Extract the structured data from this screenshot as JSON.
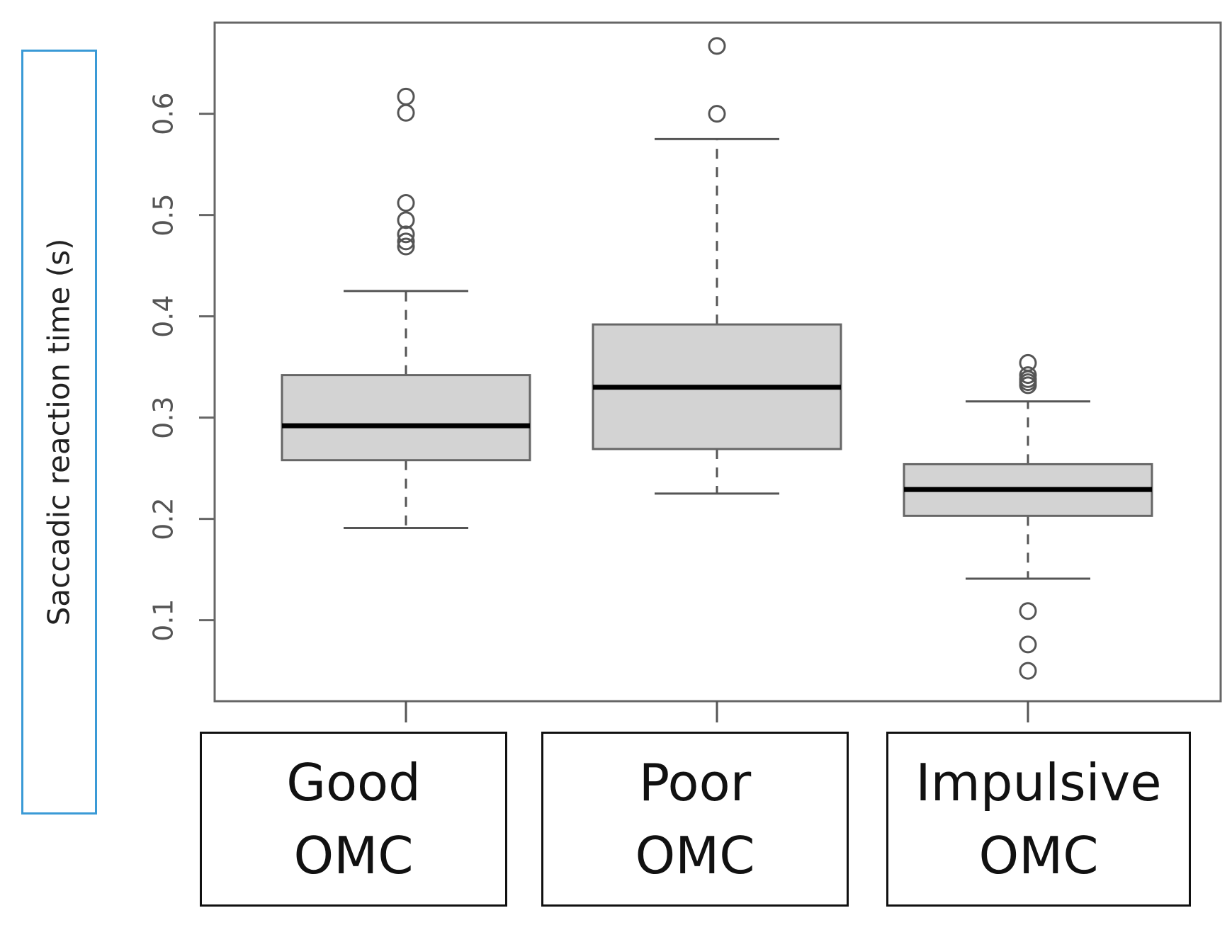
{
  "chart_data": {
    "type": "boxplot",
    "title": "",
    "xlabel": "",
    "ylabel": "Saccadic reaction time (s)",
    "ylim": [
      0.02,
      0.69
    ],
    "yticks": [
      0.1,
      0.2,
      0.3,
      0.4,
      0.5,
      0.6
    ],
    "ytick_labels": [
      "0.1",
      "0.2",
      "0.3",
      "0.4",
      "0.5",
      "0.6"
    ],
    "grid": false,
    "box_fill": "#d3d3d3",
    "categories": [
      {
        "name": "Good",
        "sub": "OMC"
      },
      {
        "name": "Poor",
        "sub": "OMC"
      },
      {
        "name": "Impulsive",
        "sub": "OMC"
      }
    ],
    "boxes": [
      {
        "label": "Good OMC",
        "whisker_low": 0.191,
        "q1": 0.258,
        "median": 0.292,
        "q3": 0.342,
        "whisker_high": 0.425,
        "outliers": [
          0.617,
          0.601,
          0.512,
          0.495,
          0.481,
          0.474,
          0.469
        ]
      },
      {
        "label": "Poor OMC",
        "whisker_low": 0.225,
        "q1": 0.269,
        "median": 0.33,
        "q3": 0.392,
        "whisker_high": 0.575,
        "outliers": [
          0.667,
          0.6
        ]
      },
      {
        "label": "Impulsive OMC",
        "whisker_low": 0.141,
        "q1": 0.203,
        "median": 0.229,
        "q3": 0.254,
        "whisker_high": 0.316,
        "outliers": [
          0.354,
          0.342,
          0.338,
          0.335,
          0.332,
          0.109,
          0.076,
          0.05
        ]
      }
    ]
  }
}
